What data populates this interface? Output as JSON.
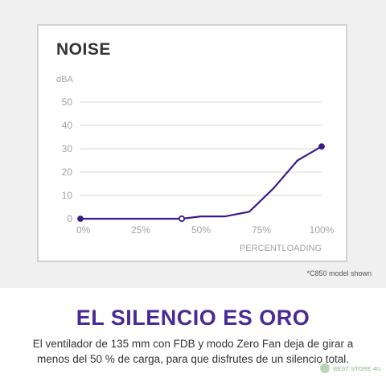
{
  "chart_data": {
    "type": "line",
    "title": "NOISE",
    "ylabel": "dBA",
    "xlabel": "PERCENTLOADING",
    "ylim": [
      0,
      50
    ],
    "xlim": [
      0,
      100
    ],
    "yticks": [
      0,
      10,
      20,
      30,
      40,
      50
    ],
    "xticks": [
      0,
      25,
      50,
      75,
      100
    ],
    "xtick_labels": [
      "0%",
      "25%",
      "50%",
      "75%",
      "100%"
    ],
    "grid": true,
    "color": "#3d1a8c",
    "series": [
      {
        "x": [
          0,
          42,
          50,
          60,
          70,
          80,
          90,
          100
        ],
        "y": [
          0,
          0,
          1,
          1,
          3,
          13,
          25,
          31
        ]
      }
    ],
    "markers": [
      {
        "x": 0,
        "y": 0,
        "style": "filled"
      },
      {
        "x": 42,
        "y": 0,
        "style": "hollow"
      },
      {
        "x": 100,
        "y": 31,
        "style": "filled"
      }
    ]
  },
  "note": "*C850 model shown",
  "headline": "EL SILENCIO ES ORO",
  "body": "El ventilador de 135 mm con FDB y modo Zero Fan deja de girar a menos del 50 % de carga, para que disfrutes de un silencio total.",
  "watermark": "BEST STORE 4U"
}
